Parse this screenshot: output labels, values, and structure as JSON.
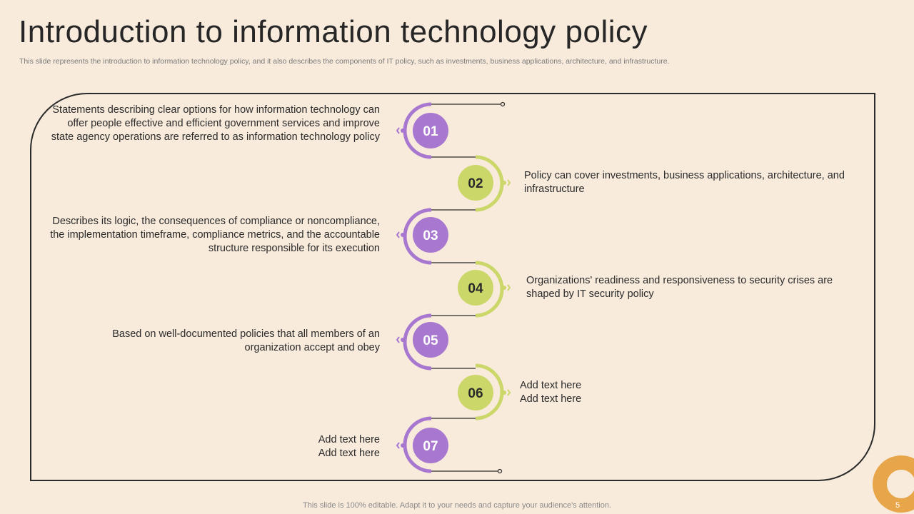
{
  "header": {
    "title": "Introduction to information technology policy",
    "subtitle": "This slide represents the introduction to information technology policy, and it also describes the components of IT policy, such as investments, business applications, architecture, and infrastructure."
  },
  "steps": [
    {
      "number": "01",
      "text": "Statements describing clear options for how information technology can offer people effective and efficient government services and improve state agency operations are referred to as information technology  policy"
    },
    {
      "number": "02",
      "text": "Policy can cover investments,  business applications, architecture, and infrastructure"
    },
    {
      "number": "03",
      "text": "Describes its logic, the consequences of compliance or noncompliance,  the implementation timeframe, compliance metrics, and the accountable structure  responsible for its execution"
    },
    {
      "number": "04",
      "text": "Organizations' readiness and responsiveness to security crises are shaped by IT  security policy"
    },
    {
      "number": "05",
      "text": "Based on well-documented  policies that all members of an organization accept and obey"
    },
    {
      "number": "06",
      "text": "Add text here\nAdd text here"
    },
    {
      "number": "07",
      "text": "Add text here\nAdd text here"
    }
  ],
  "footer": {
    "note": "This slide is 100% editable. Adapt it to your needs and capture your audience's attention.",
    "page_number": "5"
  },
  "colors": {
    "background": "#f8ebdc",
    "purple": "#a878d0",
    "green": "#ccd76a",
    "accent_orange": "#e8a64a"
  }
}
